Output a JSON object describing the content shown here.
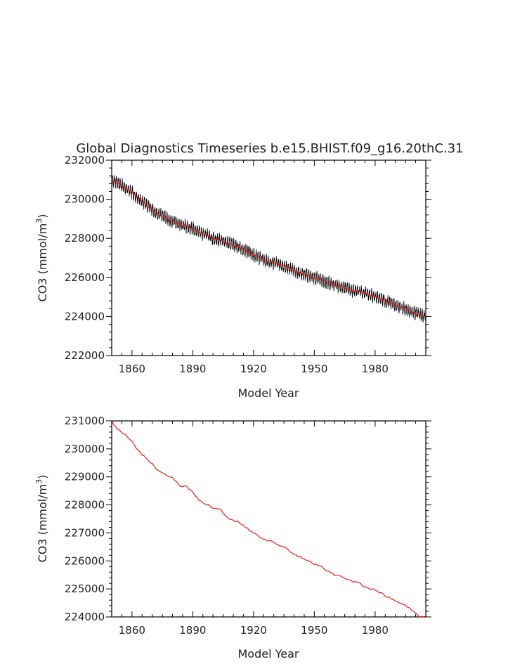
{
  "figure": {
    "title": "Global Diagnostics Timeseries b.e15.BHIST.f09_g16.20thC.31"
  },
  "chart_data": [
    {
      "type": "line",
      "title": "Global Diagnostics Timeseries b.e15.BHIST.f09_g16.20thC.31",
      "xlabel": "Model Year",
      "ylabel": "CO3 (mmol/m3)",
      "ylabel_base": "CO3 (mmol/m",
      "ylabel_sup": "3",
      "ylabel_tail": ")",
      "xlim": [
        1850,
        2005
      ],
      "ylim": [
        222000,
        232000
      ],
      "x_ticks": [
        1860,
        1890,
        1920,
        1950,
        1980
      ],
      "x_tick_labels": [
        "1860",
        "1890",
        "1920",
        "1950",
        "1980"
      ],
      "y_ticks": [
        222000,
        224000,
        226000,
        228000,
        230000,
        232000
      ],
      "y_tick_labels": [
        "222000",
        "224000",
        "226000",
        "228000",
        "230000",
        "232000"
      ],
      "grid": false,
      "series": [
        {
          "color": "#000000",
          "sampling": "monthly",
          "seasonal_amplitude": 230,
          "x": [
            1850,
            1855,
            1860,
            1865,
            1870,
            1875,
            1880,
            1885,
            1890,
            1895,
            1900,
            1905,
            1910,
            1915,
            1920,
            1925,
            1930,
            1935,
            1940,
            1945,
            1950,
            1955,
            1960,
            1965,
            1970,
            1975,
            1980,
            1985,
            1990,
            1995,
            2000,
            2005
          ],
          "y": [
            231000,
            230700,
            230350,
            229900,
            229450,
            229150,
            228850,
            228650,
            228500,
            228250,
            228000,
            227850,
            227650,
            227450,
            227150,
            226900,
            226750,
            226600,
            226350,
            226150,
            226000,
            225800,
            225600,
            225450,
            225300,
            225200,
            225000,
            224800,
            224600,
            224400,
            224150,
            224000
          ]
        },
        {
          "color": "#ff0000",
          "sampling": "annual",
          "x": [
            1850,
            1855,
            1860,
            1865,
            1870,
            1875,
            1880,
            1885,
            1890,
            1895,
            1900,
            1905,
            1910,
            1915,
            1920,
            1925,
            1930,
            1935,
            1940,
            1945,
            1950,
            1955,
            1960,
            1965,
            1970,
            1975,
            1980,
            1985,
            1990,
            1995,
            2000,
            2005
          ],
          "y": [
            231000,
            230700,
            230350,
            229900,
            229450,
            229150,
            228850,
            228650,
            228500,
            228250,
            228000,
            227850,
            227650,
            227450,
            227150,
            226900,
            226750,
            226600,
            226350,
            226150,
            226000,
            225800,
            225600,
            225450,
            225300,
            225200,
            225000,
            224800,
            224600,
            224400,
            224150,
            224000
          ]
        }
      ]
    },
    {
      "type": "line",
      "title": "",
      "xlabel": "Model Year",
      "ylabel": "CO3 (mmol/m3)",
      "ylabel_base": "CO3 (mmol/m",
      "ylabel_sup": "3",
      "ylabel_tail": ")",
      "xlim": [
        1850,
        2005
      ],
      "ylim": [
        224000,
        231000
      ],
      "x_ticks": [
        1860,
        1890,
        1920,
        1950,
        1980
      ],
      "x_tick_labels": [
        "1860",
        "1890",
        "1920",
        "1950",
        "1980"
      ],
      "y_ticks": [
        224000,
        225000,
        226000,
        227000,
        228000,
        229000,
        230000,
        231000
      ],
      "y_tick_labels": [
        "224000",
        "225000",
        "226000",
        "227000",
        "228000",
        "229000",
        "230000",
        "231000"
      ],
      "grid": false,
      "series": [
        {
          "color": "#ff0000",
          "sampling": "annual",
          "x": [
            1850,
            1853,
            1856,
            1860,
            1864,
            1868,
            1872,
            1876,
            1880,
            1884,
            1887,
            1890,
            1893,
            1896,
            1900,
            1904,
            1908,
            1912,
            1916,
            1920,
            1924,
            1928,
            1932,
            1936,
            1940,
            1944,
            1948,
            1952,
            1956,
            1960,
            1964,
            1968,
            1972,
            1976,
            1980,
            1984,
            1988,
            1992,
            1996,
            2000,
            2002,
            2005
          ],
          "y": [
            231000,
            230700,
            230550,
            230250,
            229850,
            229600,
            229300,
            229100,
            228950,
            228650,
            228650,
            228450,
            228200,
            228050,
            227900,
            227800,
            227500,
            227400,
            227200,
            227000,
            226800,
            226700,
            226600,
            226450,
            226250,
            226100,
            225950,
            225850,
            225650,
            225500,
            225400,
            225300,
            225200,
            225050,
            224950,
            224800,
            224650,
            224500,
            224350,
            224150,
            224000,
            224000
          ]
        }
      ]
    }
  ]
}
